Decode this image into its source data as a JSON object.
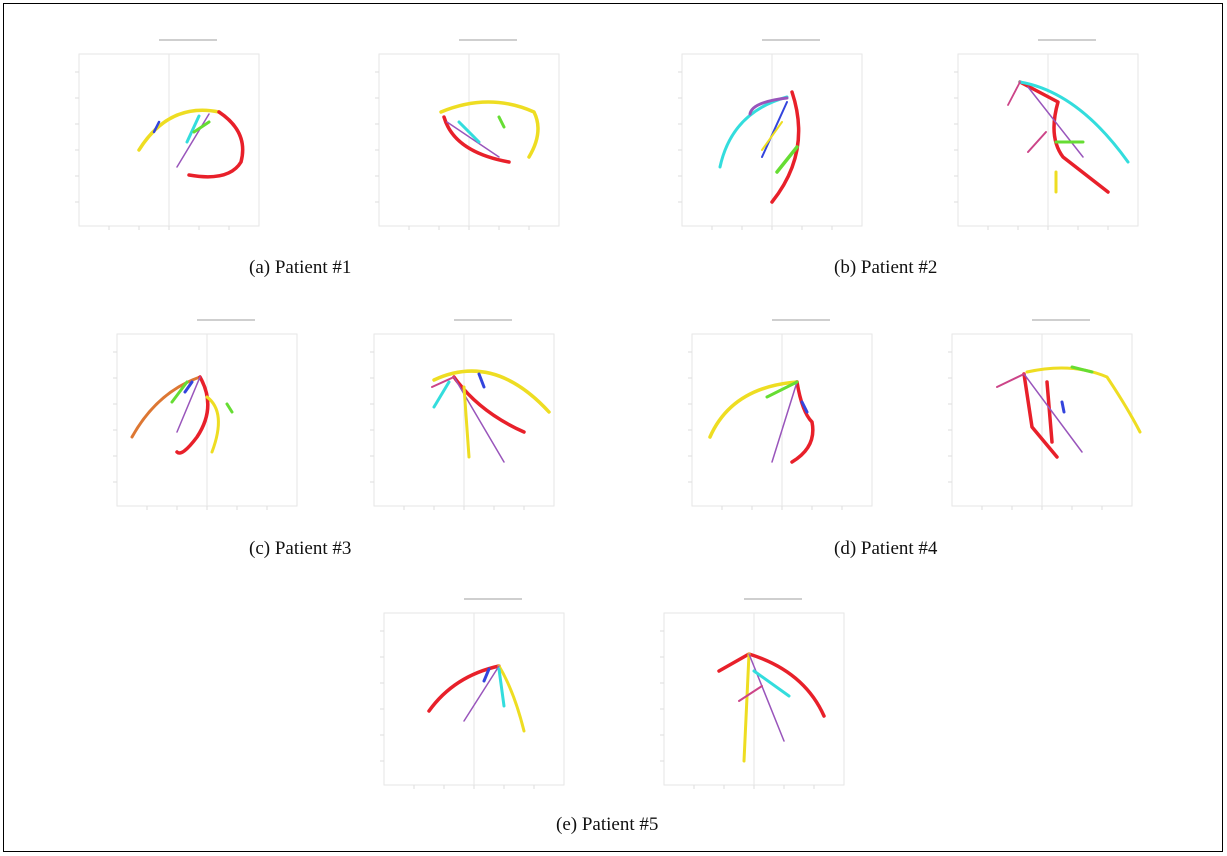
{
  "figure": {
    "captions": {
      "a": "(a)  Patient #1",
      "b": "(b)  Patient #2",
      "c": "(c)  Patient #3",
      "d": "(d)  Patient #4",
      "e": "(e)  Patient #5"
    }
  },
  "colors": {
    "red": "#e8202a",
    "yellow": "#eedd22",
    "cyan": "#33dddd",
    "green": "#66dd33",
    "blue": "#3344dd",
    "purple": "#9955bb",
    "magenta": "#cc4488",
    "orange": "#dd7733",
    "frame": "#000000",
    "axis": "#e6e6e6"
  }
}
